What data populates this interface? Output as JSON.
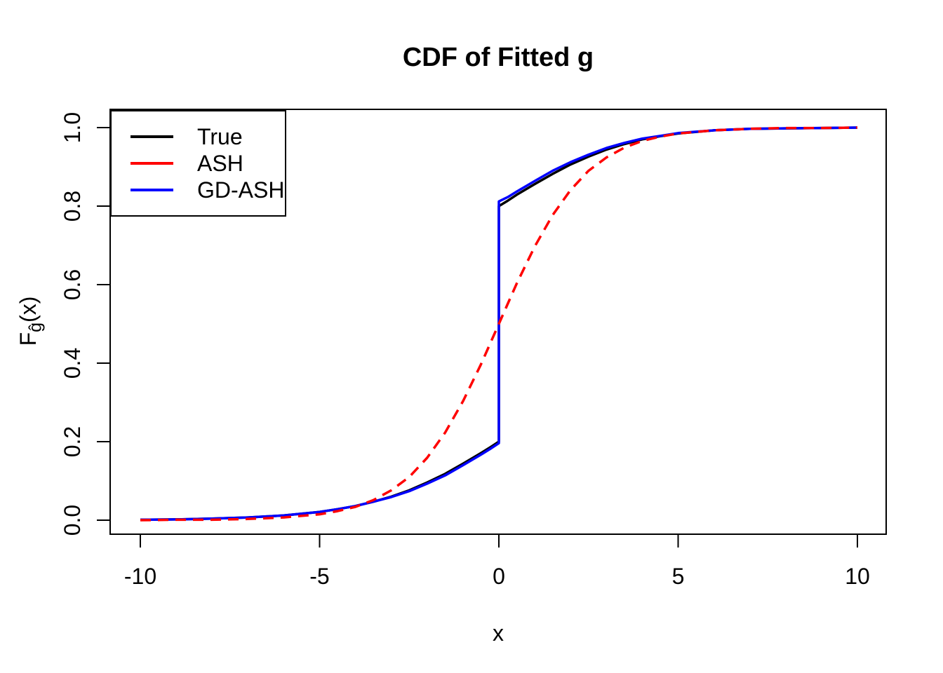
{
  "title": "CDF of Fitted g",
  "axes": {
    "x_label": "x",
    "y_label_f": "F",
    "y_label_sub": "ĝ",
    "y_label_suffix": "(x)"
  },
  "legend": {
    "items": [
      {
        "label": "True",
        "color": "#000000",
        "style": "solid"
      },
      {
        "label": "ASH",
        "color": "#ff0000",
        "style": "dashed"
      },
      {
        "label": "GD-ASH",
        "color": "#0000ff",
        "style": "solid"
      }
    ]
  },
  "chart_data": {
    "type": "line",
    "title": "CDF of Fitted g",
    "xlabel": "x",
    "ylabel": "F_ĝ(x)",
    "xlim": [
      -10.84,
      10.84
    ],
    "ylim": [
      -0.036,
      1.046
    ],
    "x_ticks": [
      -10,
      -5,
      0,
      5,
      10
    ],
    "x_tick_labels": [
      "-10",
      "-5",
      "0",
      "5",
      "10"
    ],
    "y_ticks": [
      0.0,
      0.2,
      0.4,
      0.6,
      0.8,
      1.0
    ],
    "y_tick_labels": [
      "0.0",
      "0.2",
      "0.4",
      "0.6",
      "0.8",
      "1.0"
    ],
    "grid": false,
    "legend_position": "topleft",
    "jump_note": "True and GD-ASH have a discontinuity at x=0 jumping from ~0.2 to ~0.8 (point mass ~0.6 at 0); ASH is a smooth sigmoid through (0, 0.5)",
    "series": [
      {
        "name": "True",
        "color": "#000000",
        "dash": "solid",
        "width": 3.5,
        "points": [
          [
            -10,
            0.001
          ],
          [
            -9,
            0.002
          ],
          [
            -8,
            0.004
          ],
          [
            -7,
            0.007
          ],
          [
            -6,
            0.012
          ],
          [
            -5,
            0.021
          ],
          [
            -4.5,
            0.028
          ],
          [
            -4,
            0.036
          ],
          [
            -3.5,
            0.047
          ],
          [
            -3,
            0.06
          ],
          [
            -2.5,
            0.076
          ],
          [
            -2,
            0.096
          ],
          [
            -1.5,
            0.118
          ],
          [
            -1,
            0.144
          ],
          [
            -0.5,
            0.171
          ],
          [
            -0.25,
            0.185
          ],
          [
            0,
            0.2
          ],
          [
            0,
            0.8
          ],
          [
            0.25,
            0.814
          ],
          [
            0.5,
            0.829
          ],
          [
            1,
            0.856
          ],
          [
            1.5,
            0.882
          ],
          [
            2,
            0.906
          ],
          [
            2.5,
            0.926
          ],
          [
            3,
            0.944
          ],
          [
            3.5,
            0.958
          ],
          [
            4,
            0.97
          ],
          [
            4.5,
            0.978
          ],
          [
            5,
            0.985
          ],
          [
            6,
            0.993
          ],
          [
            7,
            0.997
          ],
          [
            8,
            0.998
          ],
          [
            9,
            0.999
          ],
          [
            10,
            1.0
          ]
        ]
      },
      {
        "name": "GD-ASH",
        "color": "#0000ff",
        "dash": "solid",
        "width": 3.5,
        "points": [
          [
            -10,
            0.001
          ],
          [
            -9,
            0.002
          ],
          [
            -8,
            0.004
          ],
          [
            -7,
            0.007
          ],
          [
            -6,
            0.012
          ],
          [
            -5,
            0.021
          ],
          [
            -4.5,
            0.028
          ],
          [
            -4,
            0.036
          ],
          [
            -3.5,
            0.047
          ],
          [
            -3,
            0.059
          ],
          [
            -2.5,
            0.074
          ],
          [
            -2,
            0.093
          ],
          [
            -1.5,
            0.114
          ],
          [
            -1,
            0.14
          ],
          [
            -0.5,
            0.167
          ],
          [
            -0.25,
            0.181
          ],
          [
            0,
            0.196
          ],
          [
            0,
            0.812
          ],
          [
            0.25,
            0.823
          ],
          [
            0.5,
            0.837
          ],
          [
            1,
            0.864
          ],
          [
            1.5,
            0.89
          ],
          [
            2,
            0.912
          ],
          [
            2.5,
            0.931
          ],
          [
            3,
            0.948
          ],
          [
            3.5,
            0.961
          ],
          [
            4,
            0.972
          ],
          [
            4.5,
            0.979
          ],
          [
            5,
            0.986
          ],
          [
            6,
            0.993
          ],
          [
            7,
            0.997
          ],
          [
            8,
            0.998
          ],
          [
            9,
            0.999
          ],
          [
            10,
            1.0
          ]
        ]
      },
      {
        "name": "ASH",
        "color": "#ff0000",
        "dash": "dashed",
        "width": 3.5,
        "points": [
          [
            -10,
            0.0
          ],
          [
            -9,
            0.001
          ],
          [
            -8,
            0.001
          ],
          [
            -7,
            0.003
          ],
          [
            -6,
            0.007
          ],
          [
            -5,
            0.015
          ],
          [
            -4.5,
            0.023
          ],
          [
            -4,
            0.034
          ],
          [
            -3.5,
            0.051
          ],
          [
            -3,
            0.076
          ],
          [
            -2.5,
            0.11
          ],
          [
            -2,
            0.159
          ],
          [
            -1.5,
            0.223
          ],
          [
            -1,
            0.303
          ],
          [
            -0.5,
            0.397
          ],
          [
            0,
            0.5
          ],
          [
            0.5,
            0.603
          ],
          [
            1,
            0.697
          ],
          [
            1.5,
            0.777
          ],
          [
            2,
            0.841
          ],
          [
            2.5,
            0.89
          ],
          [
            3,
            0.924
          ],
          [
            3.5,
            0.949
          ],
          [
            4,
            0.966
          ],
          [
            4.5,
            0.977
          ],
          [
            5,
            0.985
          ],
          [
            6,
            0.993
          ],
          [
            7,
            0.997
          ],
          [
            8,
            0.999
          ],
          [
            9,
            0.999
          ],
          [
            10,
            1.0
          ]
        ]
      }
    ]
  }
}
